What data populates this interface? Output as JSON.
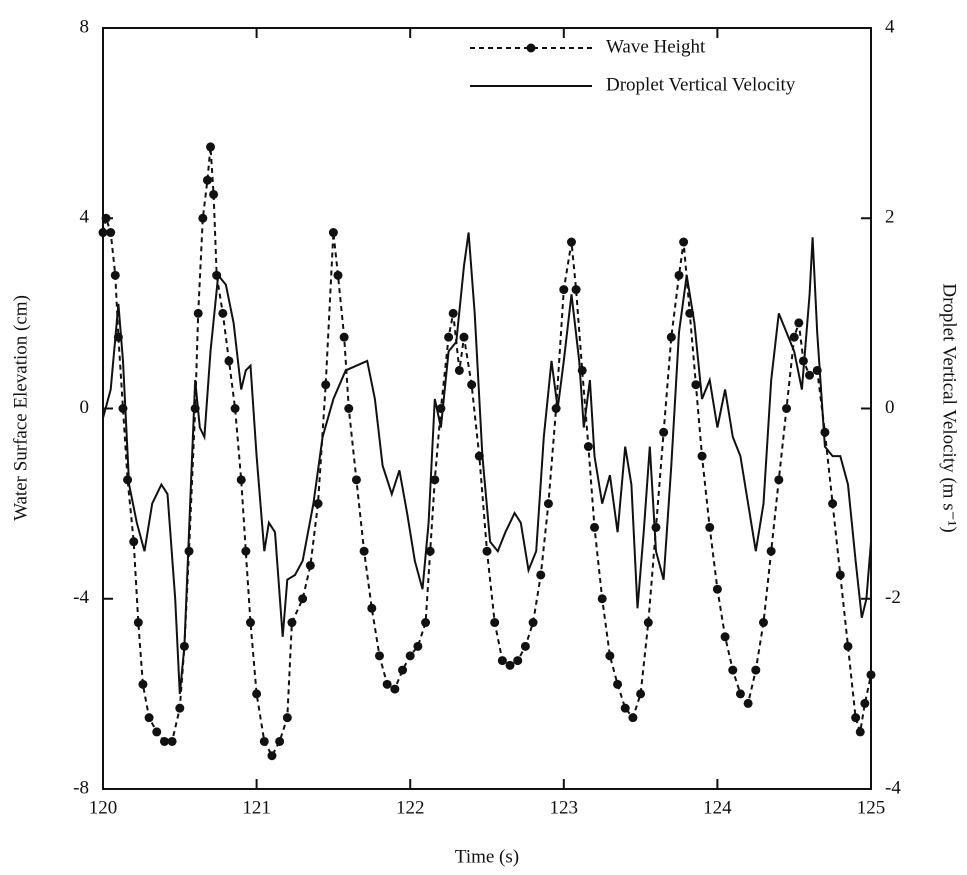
{
  "chart_data": {
    "type": "line",
    "xlabel": "Time (s)",
    "ylabel": "Water Surface Elevation (cm)",
    "y2label": "Droplet Vertical Velocity (m s⁻¹)",
    "xlim": [
      120,
      125
    ],
    "xticks": [
      120,
      121,
      122,
      123,
      124,
      125
    ],
    "ylim": [
      -8,
      8
    ],
    "yticks": [
      -8,
      -4,
      0,
      4,
      8
    ],
    "y2lim": [
      -4,
      4
    ],
    "y2ticks": [
      -4,
      -2,
      0,
      2,
      4
    ],
    "legend": "upper right",
    "series": [
      {
        "name": "Wave Height",
        "color": "#111111",
        "style": "dashed",
        "marker": "circle",
        "x": [
          120.0,
          120.02,
          120.05,
          120.08,
          120.1,
          120.13,
          120.16,
          120.2,
          120.23,
          120.26,
          120.3,
          120.35,
          120.4,
          120.45,
          120.5,
          120.53,
          120.56,
          120.6,
          120.62,
          120.65,
          120.68,
          120.7,
          120.72,
          120.74,
          120.78,
          120.82,
          120.86,
          120.9,
          120.93,
          120.96,
          121.0,
          121.05,
          121.1,
          121.15,
          121.2,
          121.23,
          121.3,
          121.35,
          121.4,
          121.45,
          121.5,
          121.53,
          121.57,
          121.6,
          121.65,
          121.7,
          121.75,
          121.8,
          121.85,
          121.9,
          121.95,
          122.0,
          122.05,
          122.1,
          122.13,
          122.16,
          122.2,
          122.25,
          122.28,
          122.32,
          122.35,
          122.4,
          122.45,
          122.5,
          122.55,
          122.6,
          122.65,
          122.7,
          122.75,
          122.8,
          122.85,
          122.9,
          122.95,
          123.0,
          123.05,
          123.08,
          123.12,
          123.16,
          123.2,
          123.25,
          123.3,
          123.35,
          123.4,
          123.45,
          123.5,
          123.55,
          123.6,
          123.65,
          123.7,
          123.75,
          123.78,
          123.82,
          123.86,
          123.9,
          123.95,
          124.0,
          124.05,
          124.1,
          124.15,
          124.2,
          124.25,
          124.3,
          124.35,
          124.4,
          124.45,
          124.5,
          124.53,
          124.56,
          124.6,
          124.65,
          124.7,
          124.75,
          124.8,
          124.85,
          124.9,
          124.93,
          124.96,
          125.0
        ],
        "values": [
          3.7,
          4.0,
          3.7,
          2.8,
          1.5,
          0,
          -1.5,
          -2.8,
          -4.5,
          -5.8,
          -6.5,
          -6.8,
          -7.0,
          -7.0,
          -6.3,
          -5.0,
          -3,
          0,
          2,
          4.0,
          4.8,
          5.5,
          4.5,
          2.8,
          2,
          1,
          0,
          -1.5,
          -3,
          -4.5,
          -6.0,
          -7.0,
          -7.3,
          -7.0,
          -6.5,
          -4.5,
          -4.0,
          -3.3,
          -2.0,
          0.5,
          3.7,
          2.8,
          1.5,
          0,
          -1.5,
          -3.0,
          -4.2,
          -5.2,
          -5.8,
          -5.9,
          -5.5,
          -5.2,
          -5.0,
          -4.5,
          -3.0,
          -1.5,
          0,
          1.5,
          2.0,
          0.8,
          1.5,
          0.5,
          -1,
          -3,
          -4.5,
          -5.3,
          -5.4,
          -5.3,
          -5.0,
          -4.5,
          -3.5,
          -2,
          0,
          2.5,
          3.5,
          2.5,
          0.8,
          -0.8,
          -2.5,
          -4.0,
          -5.2,
          -5.8,
          -6.3,
          -6.5,
          -6.0,
          -4.5,
          -2.5,
          -0.5,
          1.5,
          2.8,
          3.5,
          2.0,
          0.5,
          -1,
          -2.5,
          -3.8,
          -4.8,
          -5.5,
          -6.0,
          -6.2,
          -5.5,
          -4.5,
          -3.0,
          -1.5,
          0,
          1.5,
          1.8,
          1.0,
          0.7,
          0.8,
          -0.5,
          -2.0,
          -3.5,
          -5.0,
          -6.5,
          -6.8,
          -6.2,
          -5.6
        ]
      },
      {
        "name": "Droplet Vertical Velocity",
        "color": "#111111",
        "style": "solid",
        "axis": "y2",
        "x": [
          120.0,
          120.05,
          120.1,
          120.13,
          120.17,
          120.22,
          120.27,
          120.32,
          120.38,
          120.42,
          120.47,
          120.5,
          120.53,
          120.56,
          120.6,
          120.63,
          120.66,
          120.7,
          120.75,
          120.8,
          120.85,
          120.9,
          120.93,
          120.96,
          121.0,
          121.05,
          121.08,
          121.12,
          121.17,
          121.2,
          121.25,
          121.3,
          121.37,
          121.43,
          121.5,
          121.58,
          121.65,
          121.72,
          121.77,
          121.82,
          121.88,
          121.93,
          121.98,
          122.03,
          122.08,
          122.12,
          122.16,
          122.2,
          122.25,
          122.3,
          122.35,
          122.38,
          122.42,
          122.47,
          122.52,
          122.57,
          122.62,
          122.68,
          122.72,
          122.77,
          122.82,
          122.87,
          122.92,
          122.96,
          123.0,
          123.05,
          123.1,
          123.13,
          123.17,
          123.2,
          123.25,
          123.3,
          123.35,
          123.4,
          123.44,
          123.48,
          123.52,
          123.56,
          123.6,
          123.65,
          123.7,
          123.75,
          123.8,
          123.85,
          123.9,
          123.95,
          124.0,
          124.05,
          124.1,
          124.15,
          124.2,
          124.25,
          124.3,
          124.35,
          124.4,
          124.45,
          124.5,
          124.55,
          124.6,
          124.62,
          124.65,
          124.7,
          124.75,
          124.8,
          124.85,
          124.9,
          124.94,
          124.97,
          125.0
        ],
        "values": [
          -0.1,
          0.2,
          1.1,
          0.5,
          -0.8,
          -1.2,
          -1.5,
          -1.0,
          -0.8,
          -0.9,
          -2.0,
          -3.0,
          -2.5,
          -1.3,
          0.3,
          -0.2,
          -0.3,
          0.6,
          1.4,
          1.3,
          0.9,
          0.2,
          0.4,
          0.45,
          -0.5,
          -1.5,
          -1.2,
          -1.3,
          -2.4,
          -1.8,
          -1.75,
          -1.6,
          -1.0,
          -0.3,
          0.1,
          0.4,
          0.45,
          0.5,
          0.1,
          -0.6,
          -0.9,
          -0.65,
          -1.1,
          -1.6,
          -1.9,
          -1.2,
          0.1,
          -0.2,
          0.6,
          0.7,
          1.5,
          1.85,
          1.0,
          -0.5,
          -1.4,
          -1.5,
          -1.3,
          -1.1,
          -1.2,
          -1.7,
          -1.5,
          -0.3,
          0.5,
          0.0,
          0.5,
          1.2,
          0.5,
          -0.2,
          0.3,
          -0.5,
          -1.0,
          -0.7,
          -1.3,
          -0.4,
          -0.8,
          -2.1,
          -1.3,
          -0.4,
          -1.5,
          -1.8,
          -0.6,
          0.8,
          1.4,
          0.9,
          0.1,
          0.3,
          -0.2,
          0.2,
          -0.3,
          -0.5,
          -1.0,
          -1.5,
          -1.0,
          0.3,
          1.0,
          0.8,
          0.6,
          0.2,
          1.2,
          1.8,
          0.8,
          -0.4,
          -0.5,
          -0.5,
          -0.8,
          -1.6,
          -2.2,
          -2.0,
          -1.4
        ]
      }
    ]
  }
}
